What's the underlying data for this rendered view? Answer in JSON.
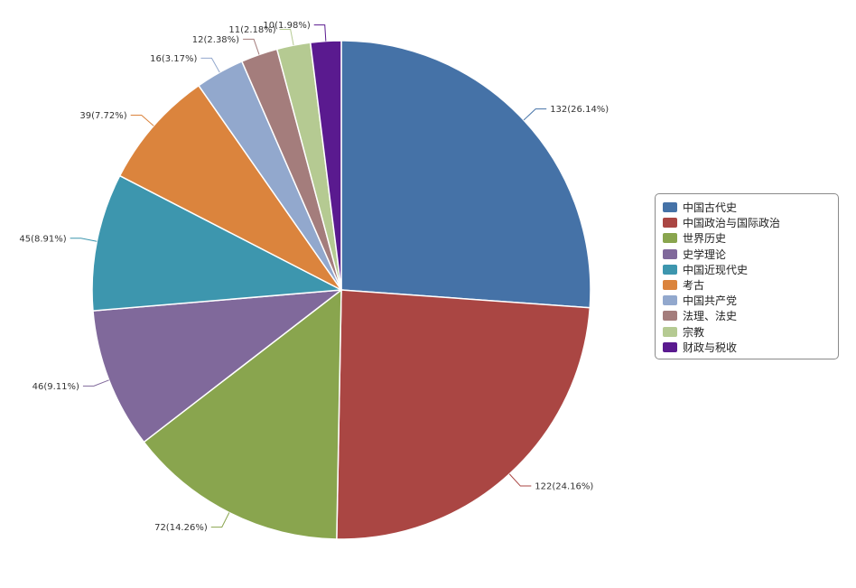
{
  "chart_data": {
    "type": "pie",
    "title": "",
    "legend_position": "right",
    "categories": [
      "中国古代史",
      "中国政治与国际政治",
      "世界历史",
      "史学理论",
      "中国近现代史",
      "考古",
      "中国共产党",
      "法理、法史",
      "宗教",
      "财政与税收"
    ],
    "values": [
      132,
      122,
      72,
      46,
      45,
      39,
      16,
      12,
      11,
      10
    ],
    "labels": [
      "132(26.14%)",
      "122(24.16%)",
      "72(14.26%)",
      "46(9.11%)",
      "45(8.91%)",
      "39(7.72%)",
      "16(3.17%)",
      "12(2.38%)",
      "11(2.18%)",
      "10(1.98%)"
    ],
    "colors": [
      "#4572a7",
      "#aa4643",
      "#89a54e",
      "#80699b",
      "#3d96ae",
      "#db843d",
      "#92a8cd",
      "#a47d7c",
      "#b5ca92",
      "#5a1a8f"
    ]
  }
}
